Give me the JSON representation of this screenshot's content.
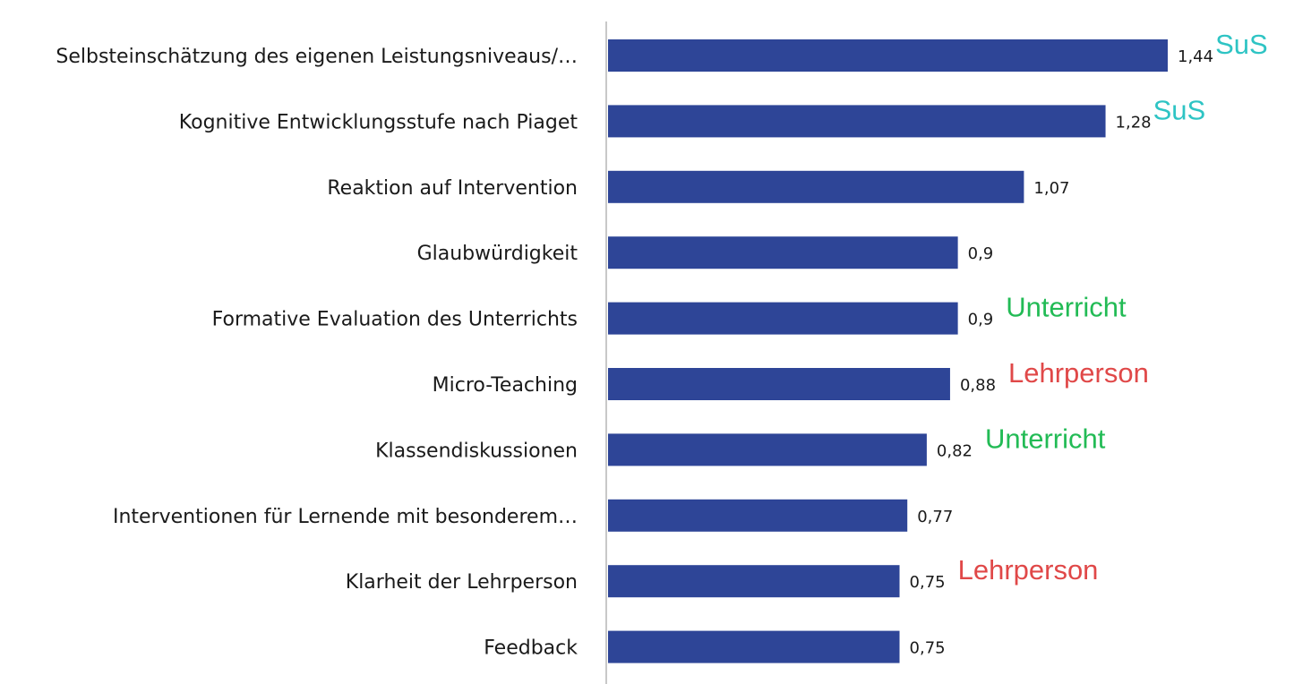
{
  "chart_data": {
    "type": "bar",
    "orientation": "horizontal",
    "title": "",
    "xlabel": "",
    "ylabel": "",
    "categories": [
      "Selbsteinschätzung des eigenen Leistungsniveaus/…",
      "Kognitive Entwicklungsstufe nach Piaget",
      "Reaktion auf Intervention",
      "Glaubwürdigkeit",
      "Formative Evaluation des Unterrichts",
      "Micro-Teaching",
      "Klassendiskussionen",
      "Interventionen für Lernende mit besonderem…",
      "Klarheit der Lehrperson",
      "Feedback"
    ],
    "values": [
      1.44,
      1.28,
      1.07,
      0.9,
      0.9,
      0.88,
      0.82,
      0.77,
      0.75,
      0.75
    ],
    "value_labels": [
      "1,44",
      "1,28",
      "1,07",
      "0,9",
      "0,9",
      "0,88",
      "0,82",
      "0,77",
      "0,75",
      "0,75"
    ],
    "annotations": [
      "SuS",
      "SuS",
      "",
      "",
      "Unterricht",
      "Lehrperson",
      "Unterricht",
      "",
      "Lehrperson",
      ""
    ],
    "annotation_colors": {
      "SuS": "#2ec4c4",
      "Unterricht": "#22bb55",
      "Lehrperson": "#e04848"
    },
    "bar_color": "#2e4597",
    "axis_color": "#c8c8c8",
    "xlim": [
      0,
      1.44
    ],
    "grid": false,
    "legend": "none"
  }
}
